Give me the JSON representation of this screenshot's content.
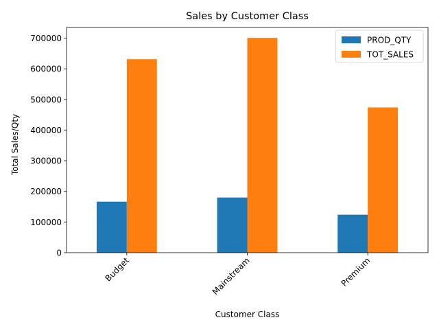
{
  "chart_data": {
    "type": "bar",
    "title": "Sales by Customer Class",
    "xlabel": "Customer Class",
    "ylabel": "Total Sales/Qty",
    "categories": [
      "Budget",
      "Mainstream",
      "Premium"
    ],
    "series": [
      {
        "name": "PROD_QTY",
        "values": [
          166500,
          180000,
          124000
        ],
        "color": "#1f77b4"
      },
      {
        "name": "TOT_SALES",
        "values": [
          631500,
          701000,
          474000
        ],
        "color": "#ff7f0e"
      }
    ],
    "ylim": [
      0,
      735000
    ],
    "yticks": [
      0,
      100000,
      200000,
      300000,
      400000,
      500000,
      600000,
      700000
    ],
    "grid": false,
    "legend_position": "top-right"
  }
}
